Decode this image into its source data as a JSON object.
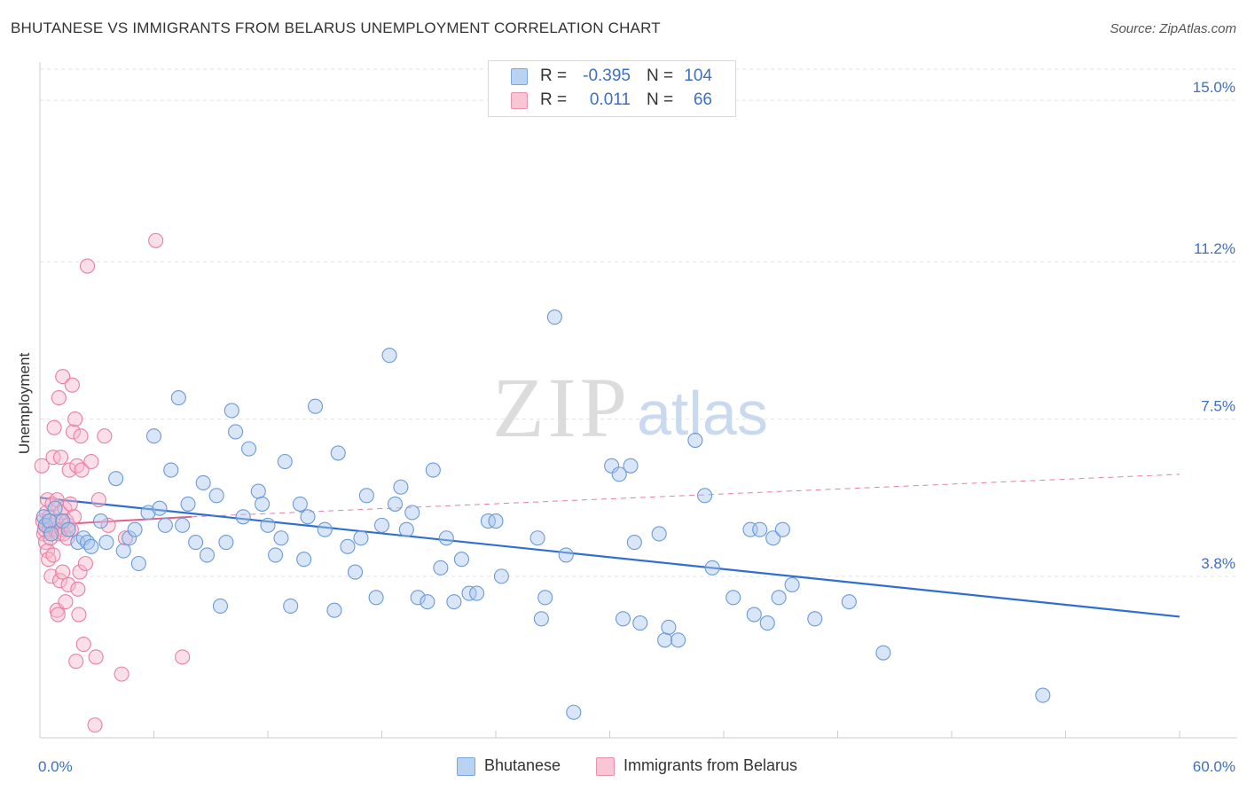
{
  "header": {
    "title": "BHUTANESE VS IMMIGRANTS FROM BELARUS UNEMPLOYMENT CORRELATION CHART",
    "source": "Source: ZipAtlas.com"
  },
  "watermark": {
    "zip": "ZIP",
    "atlas": "atlas"
  },
  "legend": {
    "rows": [
      {
        "r_label": "R =",
        "r_value": "-0.395",
        "n_label": "N =",
        "n_value": "104"
      },
      {
        "r_label": "R =",
        "r_value": "0.011",
        "n_label": "N =",
        "n_value": "66"
      }
    ]
  },
  "bottom_legend": {
    "series1": "Bhutanese",
    "series2": "Immigrants from Belarus"
  },
  "chart_data": {
    "type": "scatter",
    "title": "BHUTANESE VS IMMIGRANTS FROM BELARUS UNEMPLOYMENT CORRELATION CHART",
    "xlabel": "",
    "ylabel": "Unemployment",
    "xlim": [
      0,
      60
    ],
    "ylim": [
      0,
      15.9
    ],
    "x_tick_labels": [
      {
        "value": 0,
        "label": "0.0%"
      },
      {
        "value": 60,
        "label": "60.0%"
      }
    ],
    "y_tick_labels": [
      {
        "value": 3.8,
        "label": "3.8%"
      },
      {
        "value": 7.5,
        "label": "7.5%"
      },
      {
        "value": 11.2,
        "label": "11.2%"
      },
      {
        "value": 15.0,
        "label": "15.0%"
      }
    ],
    "colors": {
      "blue_fill": "#a9c7ee",
      "blue_stroke": "#6b9ad8",
      "blue_line": "#2f6fd0",
      "pink_fill": "#f6b9cb",
      "pink_stroke": "#e97fa0",
      "pink_line": "#e0608a",
      "tick_text": "#3d6fc4",
      "grid": "#e2e2e2"
    },
    "series": [
      {
        "name": "Bhutanese",
        "trend": {
          "x": [
            0,
            60
          ],
          "y": [
            5.65,
            2.85
          ],
          "dashed": false
        },
        "points": [
          [
            0.2,
            5.2
          ],
          [
            0.3,
            5.0
          ],
          [
            0.5,
            5.1
          ],
          [
            0.6,
            4.8
          ],
          [
            0.8,
            5.4
          ],
          [
            1.2,
            5.1
          ],
          [
            1.5,
            4.9
          ],
          [
            2.0,
            4.6
          ],
          [
            2.3,
            4.7
          ],
          [
            2.5,
            4.6
          ],
          [
            2.7,
            4.5
          ],
          [
            3.2,
            5.1
          ],
          [
            3.5,
            4.6
          ],
          [
            4.0,
            6.1
          ],
          [
            4.4,
            4.4
          ],
          [
            4.7,
            4.7
          ],
          [
            5.0,
            4.9
          ],
          [
            5.2,
            4.1
          ],
          [
            5.7,
            5.3
          ],
          [
            6.0,
            7.1
          ],
          [
            6.3,
            5.4
          ],
          [
            6.6,
            5.0
          ],
          [
            6.9,
            6.3
          ],
          [
            7.3,
            8.0
          ],
          [
            7.5,
            5.0
          ],
          [
            7.8,
            5.5
          ],
          [
            8.2,
            4.6
          ],
          [
            8.6,
            6.0
          ],
          [
            8.8,
            4.3
          ],
          [
            9.3,
            5.7
          ],
          [
            9.5,
            3.1
          ],
          [
            9.8,
            4.6
          ],
          [
            10.1,
            7.7
          ],
          [
            10.3,
            7.2
          ],
          [
            10.7,
            5.2
          ],
          [
            11.0,
            6.8
          ],
          [
            11.5,
            5.8
          ],
          [
            11.7,
            5.5
          ],
          [
            12.0,
            5.0
          ],
          [
            12.4,
            4.3
          ],
          [
            12.7,
            4.7
          ],
          [
            12.9,
            6.5
          ],
          [
            13.2,
            3.1
          ],
          [
            13.7,
            5.5
          ],
          [
            13.9,
            4.2
          ],
          [
            14.1,
            5.2
          ],
          [
            14.5,
            7.8
          ],
          [
            15.0,
            4.9
          ],
          [
            15.5,
            3.0
          ],
          [
            15.7,
            6.7
          ],
          [
            16.2,
            4.5
          ],
          [
            16.6,
            3.9
          ],
          [
            16.9,
            4.7
          ],
          [
            17.2,
            5.7
          ],
          [
            17.7,
            3.3
          ],
          [
            18.0,
            5.0
          ],
          [
            18.4,
            9.0
          ],
          [
            18.7,
            5.5
          ],
          [
            19.0,
            5.9
          ],
          [
            19.3,
            4.9
          ],
          [
            19.6,
            5.3
          ],
          [
            19.9,
            3.3
          ],
          [
            20.4,
            3.2
          ],
          [
            20.7,
            6.3
          ],
          [
            21.1,
            4.0
          ],
          [
            21.4,
            4.7
          ],
          [
            21.8,
            3.2
          ],
          [
            22.2,
            4.2
          ],
          [
            22.6,
            3.4
          ],
          [
            23.0,
            3.4
          ],
          [
            23.6,
            5.1
          ],
          [
            24.0,
            5.1
          ],
          [
            24.3,
            3.8
          ],
          [
            26.2,
            4.7
          ],
          [
            26.4,
            2.8
          ],
          [
            26.6,
            3.3
          ],
          [
            27.1,
            9.9
          ],
          [
            27.7,
            4.3
          ],
          [
            28.1,
            0.6
          ],
          [
            30.1,
            6.4
          ],
          [
            30.5,
            6.2
          ],
          [
            30.7,
            2.8
          ],
          [
            31.1,
            6.4
          ],
          [
            31.3,
            4.6
          ],
          [
            31.6,
            2.7
          ],
          [
            32.6,
            4.8
          ],
          [
            32.9,
            2.3
          ],
          [
            33.1,
            2.6
          ],
          [
            33.6,
            2.3
          ],
          [
            34.5,
            7.0
          ],
          [
            35.0,
            5.7
          ],
          [
            35.4,
            4.0
          ],
          [
            36.5,
            3.3
          ],
          [
            37.4,
            4.9
          ],
          [
            37.6,
            2.9
          ],
          [
            37.9,
            4.9
          ],
          [
            38.3,
            2.7
          ],
          [
            38.6,
            4.7
          ],
          [
            38.9,
            3.3
          ],
          [
            39.1,
            4.9
          ],
          [
            39.6,
            3.6
          ],
          [
            40.8,
            2.8
          ],
          [
            42.6,
            3.2
          ],
          [
            44.4,
            2.0
          ],
          [
            52.8,
            1.0
          ]
        ]
      },
      {
        "name": "Immigrants from Belarus",
        "trend": {
          "x": [
            0,
            8
          ],
          "y": [
            5.0,
            5.2
          ],
          "dashed": false
        },
        "trend_dashed": {
          "x": [
            8,
            60
          ],
          "y": [
            5.2,
            6.2
          ]
        },
        "points": [
          [
            0.1,
            6.4
          ],
          [
            0.15,
            5.1
          ],
          [
            0.2,
            4.8
          ],
          [
            0.25,
            4.9
          ],
          [
            0.3,
            5.0
          ],
          [
            0.3,
            4.6
          ],
          [
            0.35,
            5.3
          ],
          [
            0.4,
            4.4
          ],
          [
            0.4,
            5.6
          ],
          [
            0.45,
            4.2
          ],
          [
            0.5,
            4.9
          ],
          [
            0.5,
            5.2
          ],
          [
            0.55,
            4.7
          ],
          [
            0.6,
            5.0
          ],
          [
            0.6,
            3.8
          ],
          [
            0.65,
            5.5
          ],
          [
            0.7,
            6.6
          ],
          [
            0.7,
            4.3
          ],
          [
            0.75,
            7.3
          ],
          [
            0.8,
            4.9
          ],
          [
            0.85,
            5.1
          ],
          [
            0.9,
            3.0
          ],
          [
            0.9,
            5.6
          ],
          [
            0.95,
            2.9
          ],
          [
            1.0,
            4.8
          ],
          [
            1.0,
            8.0
          ],
          [
            1.05,
            3.7
          ],
          [
            1.1,
            6.6
          ],
          [
            1.1,
            5.3
          ],
          [
            1.15,
            4.9
          ],
          [
            1.2,
            8.5
          ],
          [
            1.2,
            3.9
          ],
          [
            1.25,
            4.8
          ],
          [
            1.3,
            5.4
          ],
          [
            1.35,
            3.2
          ],
          [
            1.4,
            5.1
          ],
          [
            1.45,
            4.7
          ],
          [
            1.5,
            3.6
          ],
          [
            1.5,
            5.0
          ],
          [
            1.55,
            6.3
          ],
          [
            1.6,
            5.5
          ],
          [
            1.65,
            4.9
          ],
          [
            1.7,
            8.3
          ],
          [
            1.75,
            7.2
          ],
          [
            1.8,
            5.2
          ],
          [
            1.85,
            7.5
          ],
          [
            1.9,
            1.8
          ],
          [
            1.95,
            6.4
          ],
          [
            2.0,
            3.5
          ],
          [
            2.05,
            2.9
          ],
          [
            2.1,
            3.9
          ],
          [
            2.15,
            7.1
          ],
          [
            2.2,
            6.3
          ],
          [
            2.3,
            2.2
          ],
          [
            2.4,
            4.1
          ],
          [
            2.5,
            11.1
          ],
          [
            2.7,
            6.5
          ],
          [
            2.9,
            0.3
          ],
          [
            2.95,
            1.9
          ],
          [
            3.1,
            5.6
          ],
          [
            3.4,
            7.1
          ],
          [
            3.6,
            5.0
          ],
          [
            4.3,
            1.5
          ],
          [
            4.5,
            4.7
          ],
          [
            6.1,
            11.7
          ],
          [
            7.5,
            1.9
          ]
        ]
      }
    ]
  }
}
